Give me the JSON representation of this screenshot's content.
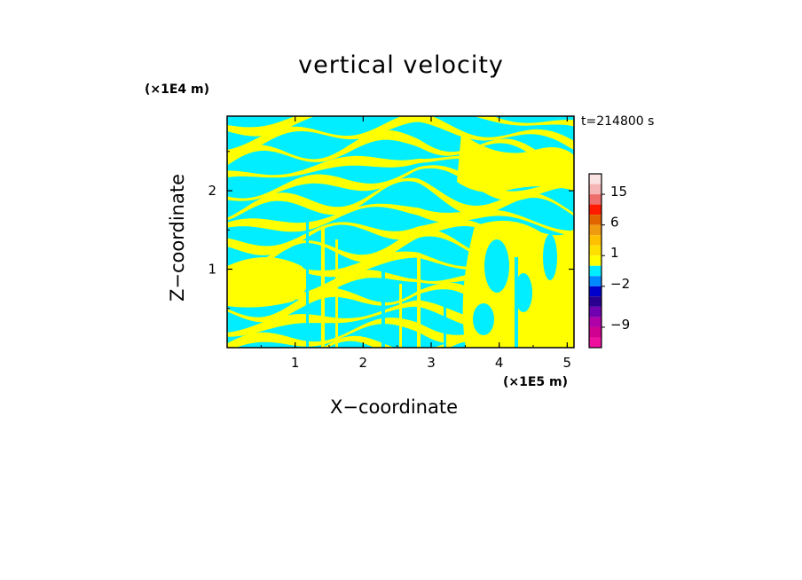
{
  "chart_data": {
    "type": "heatmap",
    "title": "vertical velocity",
    "xlabel": "X−coordinate",
    "ylabel": "Z−coordinate",
    "x_unit": "(×1E5 m)",
    "y_unit": "(×1E4 m)",
    "annotation": "t=214800 s",
    "xlim": [
      0,
      5.1
    ],
    "ylim": [
      0,
      2.95
    ],
    "x_ticks": [
      1,
      2,
      3,
      4,
      5
    ],
    "y_ticks": [
      1,
      2
    ],
    "colorbar": {
      "tick_labels": [
        {
          "value": 15,
          "label": "15"
        },
        {
          "value": 6,
          "label": "6"
        },
        {
          "value": 1,
          "label": "1"
        },
        {
          "value": -2,
          "label": "−2"
        },
        {
          "value": -9,
          "label": "−9"
        }
      ],
      "levels": [
        {
          "from": 18,
          "to": 24,
          "color": "#fbe3e3"
        },
        {
          "from": 15,
          "to": 18,
          "color": "#f5b5b5"
        },
        {
          "from": 12,
          "to": 15,
          "color": "#ee6e6e"
        },
        {
          "from": 9,
          "to": 12,
          "color": "#ff1a00"
        },
        {
          "from": 6,
          "to": 9,
          "color": "#e26400"
        },
        {
          "from": 3,
          "to": 6,
          "color": "#f09a10"
        },
        {
          "from": 2,
          "to": 3,
          "color": "#ffc000"
        },
        {
          "from": 1,
          "to": 2,
          "color": "#ffe000"
        },
        {
          "from": 0,
          "to": 1,
          "color": "#ffff00"
        },
        {
          "from": -1,
          "to": 0,
          "color": "#00eeff"
        },
        {
          "from": -2,
          "to": -1,
          "color": "#0088ff"
        },
        {
          "from": -3,
          "to": -2,
          "color": "#0000cc"
        },
        {
          "from": -5,
          "to": -3,
          "color": "#2a0090"
        },
        {
          "from": -7,
          "to": -5,
          "color": "#7000b0"
        },
        {
          "from": -9,
          "to": -7,
          "color": "#b000a8"
        },
        {
          "from": -11,
          "to": -9,
          "color": "#d00090"
        },
        {
          "from": -13,
          "to": -11,
          "color": "#f010a0"
        }
      ]
    },
    "field_colors": {
      "positive": "#ffff00",
      "negative": "#00eeff"
    }
  }
}
